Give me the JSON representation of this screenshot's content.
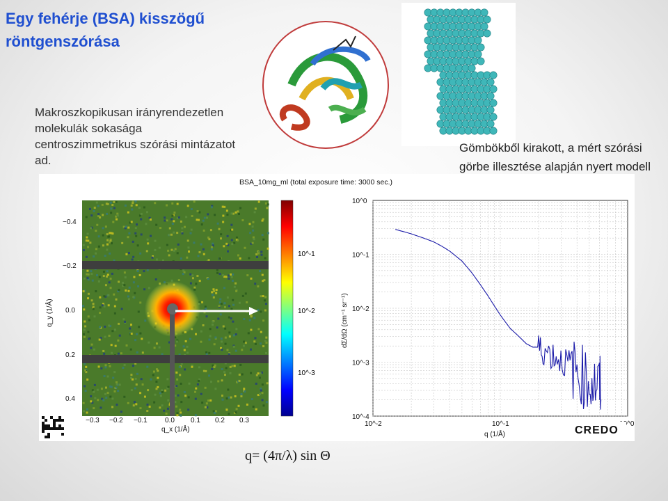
{
  "title": "Egy fehérje (BSA) kisszögű röntgenszórása",
  "intro": "Makroszkopikusan irányrendezetlen molekulák sokasága centroszimmetrikus szórási  mintázatot ad.",
  "model_caption": "Gömbökből kirakott, a mért szórási görbe illesztése alapján nyert modell",
  "formula": "q= (4π/λ) sin Θ",
  "figure_title": "BSA_10mg_ml (total exposure time: 3000 sec.)",
  "detector": {
    "y_axis_label": "q_y (1/Å)",
    "x_axis_label": "q_x (1/Å)",
    "y_ticks": [
      "−0.4",
      "−0.2",
      "0.0",
      "0.2",
      "0.4"
    ],
    "x_ticks": [
      "−0.3",
      "−0.2",
      "−0.1",
      "0.0",
      "0.1",
      "0.2",
      "0.3"
    ],
    "colorbar_ticks": [
      "10^-1",
      "10^-2",
      "10^-3"
    ]
  },
  "logo_text": "CREDO",
  "colors": {
    "title": "#1f4fd0",
    "curve": "#1a1aa8",
    "arrow_red": "#d01010",
    "sphere": "#3fb7b9"
  },
  "chart_data": {
    "type": "line",
    "title": "",
    "xlabel": "q (1/Å)",
    "ylabel": "dΣ/dΩ (cm⁻¹ sr⁻¹)",
    "xscale": "log",
    "yscale": "log",
    "xlim": [
      0.01,
      1.0
    ],
    "ylim": [
      0.0001,
      1.0
    ],
    "x_tick_labels": [
      "10^-2",
      "10^-1",
      "10^0"
    ],
    "y_tick_labels": [
      "10^0",
      "10^-1",
      "10^-2",
      "10^-3",
      "10^-4"
    ],
    "series": [
      {
        "name": "BSA 10 mg/ml",
        "x": [
          0.015,
          0.02,
          0.025,
          0.03,
          0.035,
          0.04,
          0.05,
          0.06,
          0.07,
          0.08,
          0.09,
          0.1,
          0.11,
          0.12,
          0.14,
          0.16,
          0.18,
          0.2,
          0.22,
          0.25,
          0.28,
          0.32,
          0.36,
          0.4,
          0.45,
          0.5,
          0.55,
          0.6,
          0.62
        ],
        "y": [
          0.29,
          0.24,
          0.2,
          0.17,
          0.14,
          0.115,
          0.075,
          0.045,
          0.027,
          0.017,
          0.011,
          0.0075,
          0.0055,
          0.0042,
          0.003,
          0.0022,
          0.0019,
          0.0019,
          0.0018,
          0.0015,
          0.0013,
          0.0011,
          0.0009,
          0.0008,
          0.0006,
          0.0005,
          0.00045,
          0.0004,
          0.0004
        ]
      }
    ]
  }
}
